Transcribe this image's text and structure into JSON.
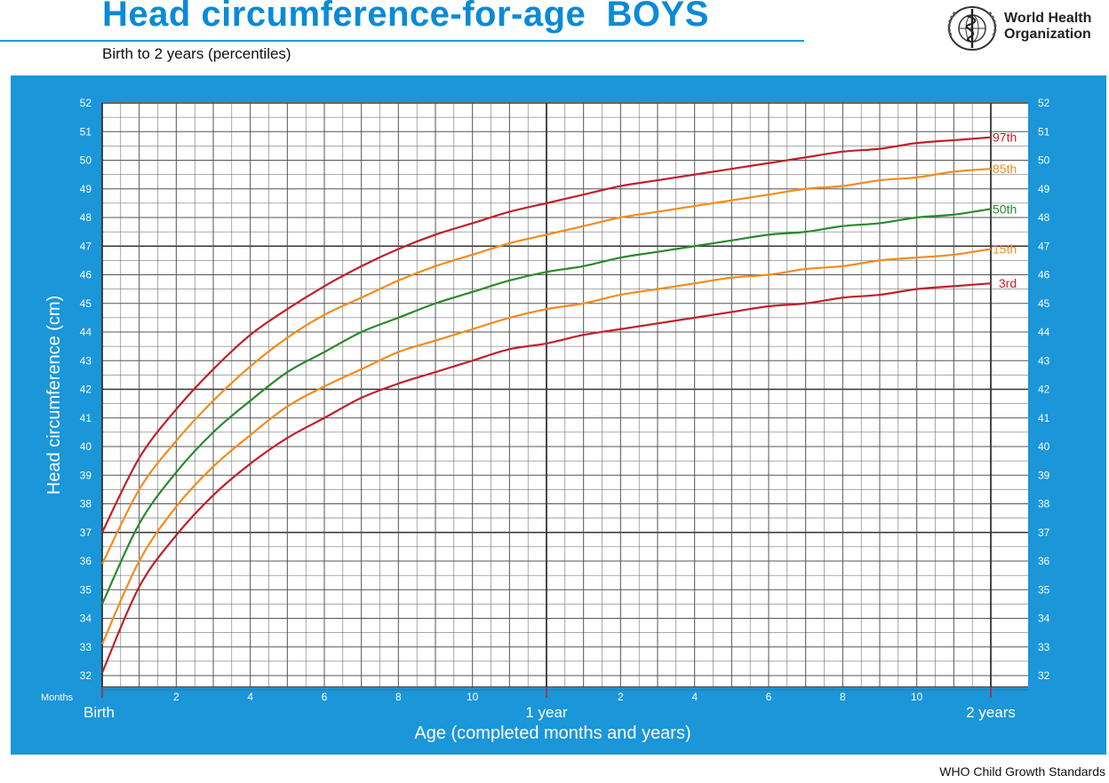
{
  "header": {
    "title": "Head circumference-for-age  BOYS",
    "subtitle": "Birth to 2 years (percentiles)",
    "org_line1": "World Health",
    "org_line2": "Organization",
    "logo_icon": "who-emblem-icon"
  },
  "footer": {
    "credit": "WHO Child Growth Standards"
  },
  "colors": {
    "panel": "#1a96d9",
    "grid": "#555555",
    "p97": "#c0202a",
    "p85": "#f28c1e",
    "p50": "#2a8a2a",
    "p15": "#f28c1e",
    "p3": "#c0202a"
  },
  "chart_data": {
    "type": "line",
    "title": "Head circumference-for-age  BOYS",
    "subtitle": "Birth to 2 years (percentiles)",
    "xlabel": "Age (completed months and years)",
    "ylabel": "Head circumference (cm)",
    "x_unit_label": "Months",
    "xlim": [
      0,
      24
    ],
    "ylim": [
      31.5,
      52
    ],
    "y_ticks": [
      32,
      33,
      34,
      35,
      36,
      37,
      38,
      39,
      40,
      41,
      42,
      43,
      44,
      45,
      46,
      47,
      48,
      49,
      50,
      51,
      52
    ],
    "x_month_ticks": [
      {
        "x": 2,
        "label": "2"
      },
      {
        "x": 4,
        "label": "4"
      },
      {
        "x": 6,
        "label": "6"
      },
      {
        "x": 8,
        "label": "8"
      },
      {
        "x": 10,
        "label": "10"
      },
      {
        "x": 14,
        "label": "2"
      },
      {
        "x": 16,
        "label": "4"
      },
      {
        "x": 18,
        "label": "6"
      },
      {
        "x": 20,
        "label": "8"
      },
      {
        "x": 22,
        "label": "10"
      }
    ],
    "x_year_labels": [
      {
        "x": 0,
        "label": "Birth"
      },
      {
        "x": 12,
        "label": "1 year"
      },
      {
        "x": 24,
        "label": "2 years"
      }
    ],
    "grid": true,
    "x": [
      0,
      1,
      2,
      3,
      4,
      5,
      6,
      7,
      8,
      9,
      10,
      11,
      12,
      13,
      14,
      15,
      16,
      17,
      18,
      19,
      20,
      21,
      22,
      23,
      24
    ],
    "series": [
      {
        "name": "97th",
        "color": "#c0202a",
        "values": [
          37.0,
          39.6,
          41.3,
          42.7,
          43.9,
          44.8,
          45.6,
          46.3,
          46.9,
          47.4,
          47.8,
          48.2,
          48.5,
          48.8,
          49.1,
          49.3,
          49.5,
          49.7,
          49.9,
          50.1,
          50.3,
          50.4,
          50.6,
          50.7,
          50.8
        ]
      },
      {
        "name": "85th",
        "color": "#f28c1e",
        "values": [
          35.9,
          38.5,
          40.2,
          41.6,
          42.8,
          43.8,
          44.6,
          45.2,
          45.8,
          46.3,
          46.7,
          47.1,
          47.4,
          47.7,
          48.0,
          48.2,
          48.4,
          48.6,
          48.8,
          49.0,
          49.1,
          49.3,
          49.4,
          49.6,
          49.7
        ]
      },
      {
        "name": "50th",
        "color": "#2a8a2a",
        "values": [
          34.5,
          37.3,
          39.1,
          40.5,
          41.6,
          42.6,
          43.3,
          44.0,
          44.5,
          45.0,
          45.4,
          45.8,
          46.1,
          46.3,
          46.6,
          46.8,
          47.0,
          47.2,
          47.4,
          47.5,
          47.7,
          47.8,
          48.0,
          48.1,
          48.3
        ]
      },
      {
        "name": "15th",
        "color": "#f28c1e",
        "values": [
          33.1,
          36.0,
          37.9,
          39.3,
          40.4,
          41.4,
          42.1,
          42.7,
          43.3,
          43.7,
          44.1,
          44.5,
          44.8,
          45.0,
          45.3,
          45.5,
          45.7,
          45.9,
          46.0,
          46.2,
          46.3,
          46.5,
          46.6,
          46.7,
          46.9
        ]
      },
      {
        "name": "3rd",
        "color": "#c0202a",
        "values": [
          32.1,
          35.1,
          36.9,
          38.3,
          39.4,
          40.3,
          41.0,
          41.7,
          42.2,
          42.6,
          43.0,
          43.4,
          43.6,
          43.9,
          44.1,
          44.3,
          44.5,
          44.7,
          44.9,
          45.0,
          45.2,
          45.3,
          45.5,
          45.6,
          45.7
        ]
      }
    ]
  }
}
